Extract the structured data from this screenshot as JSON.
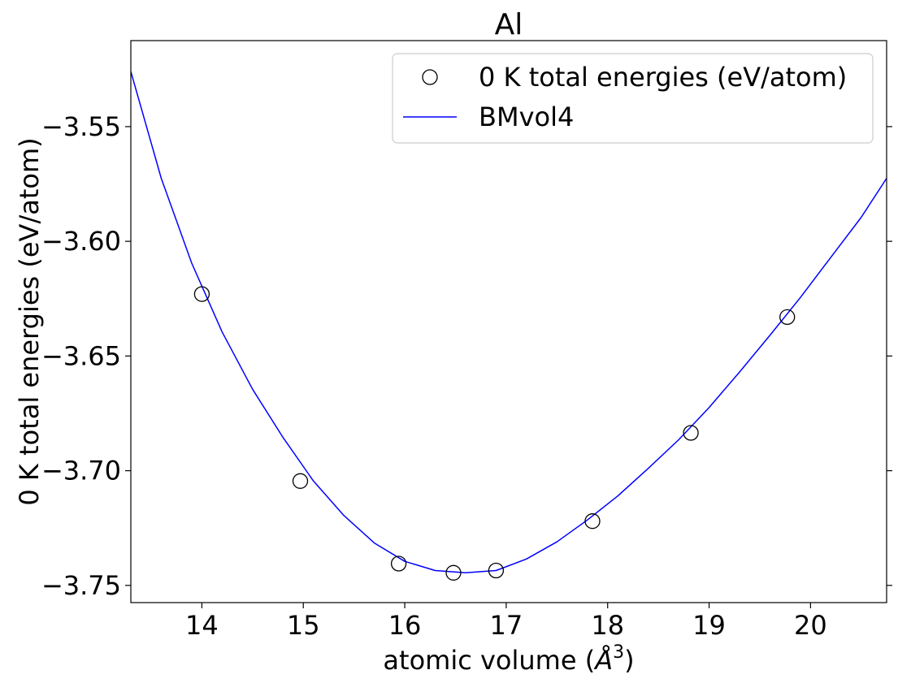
{
  "chart_data": {
    "type": "scatter",
    "title": "Al",
    "xlabel": "atomic volume (Å³)",
    "xlabel_main": "atomic volume (",
    "xlabel_unit": "Å",
    "xlabel_sup": "3",
    "xlabel_close": ")",
    "ylabel": "0 K total energies (eV/atom)",
    "xlim": [
      13.3,
      20.75
    ],
    "ylim": [
      -3.7575,
      -3.5125
    ],
    "xticks": [
      14,
      15,
      16,
      17,
      18,
      19,
      20
    ],
    "xtick_labels": [
      "14",
      "15",
      "16",
      "17",
      "18",
      "19",
      "20"
    ],
    "yticks": [
      -3.55,
      -3.6,
      -3.65,
      -3.7,
      -3.75
    ],
    "ytick_labels": [
      "−3.55",
      "−3.60",
      "−3.65",
      "−3.70",
      "−3.75"
    ],
    "grid": false,
    "legend_position": "top-right",
    "series": [
      {
        "name": "0 K total energies (eV/atom)",
        "kind": "points",
        "marker": "open-circle",
        "color": "#000000",
        "x": [
          14.0,
          14.97,
          15.94,
          16.48,
          16.9,
          17.85,
          18.82,
          19.77
        ],
        "y": [
          -3.623,
          -3.7045,
          -3.7405,
          -3.7445,
          -3.7435,
          -3.722,
          -3.6835,
          -3.633
        ]
      },
      {
        "name": "BMvol4",
        "kind": "line",
        "color": "#0000ff",
        "x": [
          13.3,
          13.6,
          13.9,
          14.2,
          14.5,
          14.8,
          15.1,
          15.4,
          15.7,
          16.0,
          16.3,
          16.6,
          16.9,
          17.2,
          17.5,
          17.8,
          18.1,
          18.4,
          18.7,
          19.0,
          19.3,
          19.6,
          19.9,
          20.2,
          20.5,
          20.75
        ],
        "y": [
          -3.526,
          -3.5725,
          -3.6095,
          -3.6395,
          -3.6645,
          -3.6855,
          -3.7045,
          -3.7195,
          -3.7315,
          -3.7395,
          -3.7435,
          -3.7445,
          -3.7435,
          -3.7385,
          -3.731,
          -3.7215,
          -3.711,
          -3.699,
          -3.6865,
          -3.6725,
          -3.657,
          -3.641,
          -3.6245,
          -3.607,
          -3.5895,
          -3.5725
        ]
      }
    ]
  }
}
